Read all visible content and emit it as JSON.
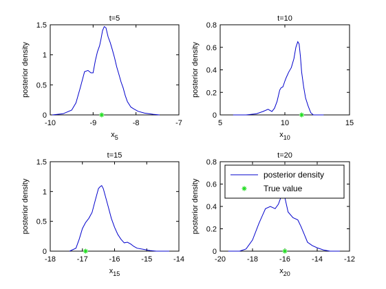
{
  "figure": {
    "background": "#ffffff"
  },
  "chart_data": [
    {
      "type": "line",
      "title": "t=5",
      "xlabel": "x",
      "xlabel_sub": "5",
      "ylabel": "posterior density",
      "xlim": [
        -10,
        -7
      ],
      "ylim": [
        0,
        1.5
      ],
      "xticks": [
        -10,
        -9,
        -8,
        -7
      ],
      "yticks": [
        0,
        0.5,
        1,
        1.5
      ],
      "xtick_labels": [
        "-10",
        "-9",
        "-8",
        "-7"
      ],
      "ytick_labels": [
        "0",
        "0.5",
        "1",
        "1.5"
      ],
      "series": [
        {
          "color": "#0000cc",
          "style": "line",
          "x": [
            -9.95,
            -9.7,
            -9.5,
            -9.4,
            -9.3,
            -9.2,
            -9.12,
            -9.05,
            -9.0,
            -8.95,
            -8.9,
            -8.85,
            -8.82,
            -8.78,
            -8.74,
            -8.7,
            -8.65,
            -8.6,
            -8.55,
            -8.5,
            -8.45,
            -8.4,
            -8.35,
            -8.3,
            -8.25,
            -8.2,
            -8.12,
            -8.05,
            -7.95,
            -7.8,
            -7.6,
            -7.45
          ],
          "y": [
            0.0,
            0.02,
            0.08,
            0.2,
            0.45,
            0.72,
            0.74,
            0.7,
            0.7,
            0.9,
            1.05,
            1.15,
            1.25,
            1.4,
            1.47,
            1.45,
            1.3,
            1.2,
            1.08,
            0.95,
            0.8,
            0.68,
            0.55,
            0.45,
            0.32,
            0.22,
            0.13,
            0.1,
            0.06,
            0.03,
            0.01,
            0.0
          ]
        },
        {
          "color": "#22dd22",
          "style": "marker",
          "x": [
            -8.8
          ],
          "y": [
            0
          ]
        }
      ]
    },
    {
      "type": "line",
      "title": "t=10",
      "xlabel": "x",
      "xlabel_sub": "10",
      "ylabel": "posterior density",
      "xlim": [
        5,
        15
      ],
      "ylim": [
        0,
        0.8
      ],
      "xticks": [
        5,
        10,
        15
      ],
      "yticks": [
        0,
        0.2,
        0.4,
        0.6,
        0.8
      ],
      "xtick_labels": [
        "5",
        "10",
        "15"
      ],
      "ytick_labels": [
        "0",
        "0.2",
        "0.4",
        "0.6",
        "0.8"
      ],
      "series": [
        {
          "color": "#0000cc",
          "style": "line",
          "x": [
            6.0,
            7.0,
            7.8,
            8.3,
            8.7,
            9.0,
            9.2,
            9.4,
            9.6,
            9.7,
            9.85,
            10.0,
            10.1,
            10.3,
            10.5,
            10.7,
            10.85,
            11.0,
            11.1,
            11.2,
            11.3,
            11.45,
            11.6,
            11.8,
            12.0,
            12.2,
            12.5,
            13.0
          ],
          "y": [
            0.0,
            0.0,
            0.01,
            0.03,
            0.05,
            0.03,
            0.06,
            0.12,
            0.22,
            0.24,
            0.25,
            0.3,
            0.33,
            0.38,
            0.42,
            0.5,
            0.6,
            0.65,
            0.63,
            0.52,
            0.38,
            0.25,
            0.15,
            0.08,
            0.02,
            0.0,
            0.0,
            0.0
          ]
        },
        {
          "color": "#22dd22",
          "style": "marker",
          "x": [
            11.3
          ],
          "y": [
            0
          ]
        }
      ]
    },
    {
      "type": "line",
      "title": "t=15",
      "xlabel": "x",
      "xlabel_sub": "15",
      "ylabel": "posterior density",
      "xlim": [
        -18,
        -14
      ],
      "ylim": [
        0,
        1.5
      ],
      "xticks": [
        -18,
        -17,
        -16,
        -15,
        -14
      ],
      "yticks": [
        0,
        0.5,
        1,
        1.5
      ],
      "xtick_labels": [
        "-18",
        "-17",
        "-16",
        "-15",
        "-14"
      ],
      "ytick_labels": [
        "0",
        "0.5",
        "1",
        "1.5"
      ],
      "series": [
        {
          "color": "#0000cc",
          "style": "line",
          "x": [
            -17.4,
            -17.2,
            -17.1,
            -17.0,
            -16.9,
            -16.8,
            -16.7,
            -16.6,
            -16.5,
            -16.45,
            -16.4,
            -16.35,
            -16.3,
            -16.2,
            -16.1,
            -16.0,
            -15.9,
            -15.8,
            -15.7,
            -15.6,
            -15.5,
            -15.4,
            -15.3,
            -15.1,
            -14.9,
            -14.7,
            -14.3
          ],
          "y": [
            0.0,
            0.05,
            0.2,
            0.38,
            0.48,
            0.55,
            0.65,
            0.85,
            1.05,
            1.08,
            1.1,
            1.05,
            0.95,
            0.75,
            0.55,
            0.4,
            0.28,
            0.2,
            0.14,
            0.15,
            0.12,
            0.08,
            0.05,
            0.03,
            0.01,
            0.0,
            0.0
          ]
        },
        {
          "color": "#22dd22",
          "style": "marker",
          "x": [
            -16.9
          ],
          "y": [
            0
          ]
        }
      ]
    },
    {
      "type": "line",
      "title": "t=20",
      "xlabel": "x",
      "xlabel_sub": "20",
      "ylabel": "posterior density",
      "xlim": [
        -20,
        -12
      ],
      "ylim": [
        0,
        0.8
      ],
      "xticks": [
        -20,
        -18,
        -16,
        -14,
        -12
      ],
      "yticks": [
        0,
        0.2,
        0.4,
        0.6,
        0.8
      ],
      "xtick_labels": [
        "-20",
        "-18",
        "-16",
        "-14",
        "-12"
      ],
      "ytick_labels": [
        "0",
        "0.2",
        "0.4",
        "0.6",
        "0.8"
      ],
      "legend": {
        "placement": "top-right",
        "entries": [
          "posterior density",
          "True value"
        ]
      },
      "series": [
        {
          "name": "posterior density",
          "color": "#0000cc",
          "style": "line",
          "x": [
            -19.5,
            -18.8,
            -18.4,
            -18.0,
            -17.6,
            -17.2,
            -16.9,
            -16.6,
            -16.4,
            -16.2,
            -16.0,
            -15.8,
            -15.5,
            -15.2,
            -15.0,
            -14.8,
            -14.6,
            -14.3,
            -14.0,
            -13.6,
            -13.2,
            -12.6
          ],
          "y": [
            0.0,
            0.0,
            0.02,
            0.1,
            0.25,
            0.38,
            0.4,
            0.38,
            0.42,
            0.5,
            0.48,
            0.35,
            0.3,
            0.28,
            0.22,
            0.15,
            0.08,
            0.05,
            0.03,
            0.01,
            0.0,
            0.0
          ]
        },
        {
          "name": "True value",
          "color": "#22dd22",
          "style": "marker",
          "x": [
            -16.0
          ],
          "y": [
            0
          ]
        }
      ]
    }
  ]
}
